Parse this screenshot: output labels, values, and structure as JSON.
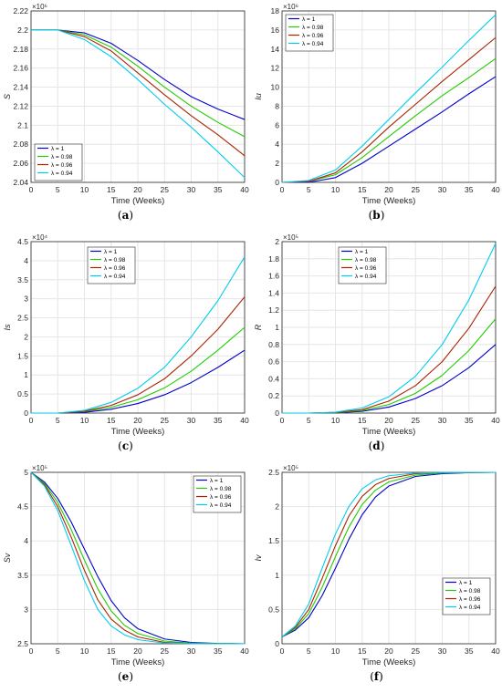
{
  "chart_data": [
    {
      "type": "line",
      "panel": "(a)",
      "ylabel": "S",
      "xlabel": "Time (Weeks)",
      "xlim": [
        0,
        40
      ],
      "ylim": [
        2.04,
        2.22
      ],
      "xticks": [
        0,
        5,
        10,
        15,
        20,
        25,
        30,
        35,
        40
      ],
      "yticks": [
        2.04,
        2.06,
        2.08,
        2.1,
        2.12,
        2.14,
        2.16,
        2.18,
        2.2,
        2.22
      ],
      "exponent": "×10⁶",
      "legend": "bottom-left",
      "x": [
        0,
        5,
        10,
        15,
        20,
        25,
        30,
        35,
        40
      ],
      "series": [
        {
          "name": "λ = 1",
          "color": "#0000cc",
          "values": [
            2.2,
            2.2,
            2.197,
            2.186,
            2.168,
            2.148,
            2.13,
            2.117,
            2.106
          ]
        },
        {
          "name": "λ = 0.98",
          "color": "#22cc00",
          "values": [
            2.2,
            2.2,
            2.195,
            2.182,
            2.162,
            2.14,
            2.12,
            2.103,
            2.088
          ]
        },
        {
          "name": "λ = 0.96",
          "color": "#aa2200",
          "values": [
            2.2,
            2.2,
            2.193,
            2.178,
            2.155,
            2.132,
            2.11,
            2.09,
            2.068
          ]
        },
        {
          "name": "λ = 0.94",
          "color": "#00ccee",
          "values": [
            2.2,
            2.2,
            2.19,
            2.172,
            2.148,
            2.122,
            2.098,
            2.072,
            2.045
          ]
        }
      ]
    },
    {
      "type": "line",
      "panel": "(b)",
      "ylabel": "Iu",
      "xlabel": "Time (Weeks)",
      "xlim": [
        0,
        40
      ],
      "ylim": [
        0,
        18
      ],
      "xticks": [
        0,
        5,
        10,
        15,
        20,
        25,
        30,
        35,
        40
      ],
      "yticks": [
        0,
        2,
        4,
        6,
        8,
        10,
        12,
        14,
        16,
        18
      ],
      "exponent": "×10⁶",
      "legend": "top-left",
      "x": [
        0,
        5,
        10,
        15,
        20,
        25,
        30,
        35,
        40
      ],
      "series": [
        {
          "name": "λ = 1",
          "color": "#0000cc",
          "values": [
            0,
            0,
            0.5,
            2,
            3.8,
            5.6,
            7.4,
            9.3,
            11.1
          ]
        },
        {
          "name": "λ = 0.98",
          "color": "#22cc00",
          "values": [
            0,
            0.1,
            0.8,
            2.6,
            4.8,
            7,
            9.1,
            11,
            13
          ]
        },
        {
          "name": "λ = 0.96",
          "color": "#aa2200",
          "values": [
            0,
            0.1,
            1,
            3.2,
            5.8,
            8.2,
            10.6,
            12.9,
            15.2
          ]
        },
        {
          "name": "λ = 0.94",
          "color": "#00ccee",
          "values": [
            0,
            0.2,
            1.3,
            3.8,
            6.6,
            9.4,
            12.1,
            14.9,
            17.6
          ]
        }
      ]
    },
    {
      "type": "line",
      "panel": "(c)",
      "ylabel": "Is",
      "xlabel": "Time (Weeks)",
      "xlim": [
        0,
        40
      ],
      "ylim": [
        0,
        4.5
      ],
      "xticks": [
        0,
        5,
        10,
        15,
        20,
        25,
        30,
        35,
        40
      ],
      "yticks": [
        0,
        0.5,
        1,
        1.5,
        2,
        2.5,
        3,
        3.5,
        4,
        4.5
      ],
      "exponent": "×10⁴",
      "legend": "top-center",
      "x": [
        0,
        5,
        10,
        15,
        20,
        25,
        30,
        35,
        40
      ],
      "series": [
        {
          "name": "λ = 1",
          "color": "#0000cc",
          "values": [
            0,
            0,
            0.02,
            0.1,
            0.25,
            0.48,
            0.8,
            1.2,
            1.65
          ]
        },
        {
          "name": "λ = 0.98",
          "color": "#22cc00",
          "values": [
            0,
            0,
            0.04,
            0.15,
            0.35,
            0.66,
            1.1,
            1.65,
            2.25
          ]
        },
        {
          "name": "λ = 0.96",
          "color": "#aa2200",
          "values": [
            0,
            0,
            0.05,
            0.2,
            0.48,
            0.9,
            1.5,
            2.2,
            3.05
          ]
        },
        {
          "name": "λ = 0.94",
          "color": "#00ccee",
          "values": [
            0,
            0,
            0.07,
            0.28,
            0.65,
            1.2,
            2,
            2.95,
            4.1
          ]
        }
      ]
    },
    {
      "type": "line",
      "panel": "(d)",
      "ylabel": "R",
      "xlabel": "Time (Weeks)",
      "xlim": [
        0,
        40
      ],
      "ylim": [
        0,
        2
      ],
      "xticks": [
        0,
        5,
        10,
        15,
        20,
        25,
        30,
        35,
        40
      ],
      "yticks": [
        0,
        0.2,
        0.4,
        0.6,
        0.8,
        1,
        1.2,
        1.4,
        1.6,
        1.8,
        2
      ],
      "exponent": "×10⁵",
      "legend": "top-center",
      "x": [
        0,
        5,
        10,
        15,
        20,
        25,
        30,
        35,
        40
      ],
      "series": [
        {
          "name": "λ = 1",
          "color": "#0000cc",
          "values": [
            0,
            0,
            0.003,
            0.02,
            0.07,
            0.17,
            0.32,
            0.53,
            0.8
          ]
        },
        {
          "name": "λ = 0.98",
          "color": "#22cc00",
          "values": [
            0,
            0,
            0.005,
            0.03,
            0.1,
            0.23,
            0.44,
            0.73,
            1.1
          ]
        },
        {
          "name": "λ = 0.96",
          "color": "#aa2200",
          "values": [
            0,
            0,
            0.007,
            0.04,
            0.14,
            0.32,
            0.6,
            0.99,
            1.48
          ]
        },
        {
          "name": "λ = 0.94",
          "color": "#00ccee",
          "values": [
            0,
            0,
            0.01,
            0.06,
            0.19,
            0.43,
            0.8,
            1.32,
            1.98
          ]
        }
      ]
    },
    {
      "type": "line",
      "panel": "(e)",
      "ylabel": "Sv",
      "xlabel": "Time (Weeks)",
      "xlim": [
        0,
        40
      ],
      "ylim": [
        2.5,
        5
      ],
      "xticks": [
        0,
        5,
        10,
        15,
        20,
        25,
        30,
        35,
        40
      ],
      "yticks": [
        2.5,
        3,
        3.5,
        4,
        4.5,
        5
      ],
      "exponent": "×10⁵",
      "legend": "top-right",
      "x": [
        0,
        2.5,
        5,
        7.5,
        10,
        12.5,
        15,
        17.5,
        20,
        25,
        30,
        35,
        40
      ],
      "series": [
        {
          "name": "λ = 1",
          "color": "#0000cc",
          "values": [
            5,
            4.86,
            4.62,
            4.28,
            3.88,
            3.48,
            3.13,
            2.88,
            2.72,
            2.57,
            2.52,
            2.505,
            2.5
          ]
        },
        {
          "name": "λ = 0.98",
          "color": "#22cc00",
          "values": [
            5,
            4.84,
            4.56,
            4.17,
            3.72,
            3.3,
            2.98,
            2.77,
            2.65,
            2.54,
            2.51,
            2.502,
            2.5
          ]
        },
        {
          "name": "λ = 0.96",
          "color": "#aa2200",
          "values": [
            5,
            4.82,
            4.5,
            4.06,
            3.57,
            3.14,
            2.86,
            2.7,
            2.6,
            2.52,
            2.505,
            2.501,
            2.5
          ]
        },
        {
          "name": "λ = 0.94",
          "color": "#00ccee",
          "values": [
            5,
            4.8,
            4.44,
            3.94,
            3.42,
            3.0,
            2.76,
            2.63,
            2.56,
            2.51,
            2.502,
            2.5,
            2.5
          ]
        }
      ]
    },
    {
      "type": "line",
      "panel": "(f)",
      "ylabel": "Iv",
      "xlabel": "Time (Weeks)",
      "xlim": [
        0,
        40
      ],
      "ylim": [
        0,
        2.5
      ],
      "xticks": [
        0,
        5,
        10,
        15,
        20,
        25,
        30,
        35,
        40
      ],
      "yticks": [
        0,
        0.5,
        1,
        1.5,
        2,
        2.5
      ],
      "exponent": "×10⁵",
      "legend": "bottom-right",
      "x": [
        0,
        2.5,
        5,
        7.5,
        10,
        12.5,
        15,
        17.5,
        20,
        25,
        30,
        35,
        40
      ],
      "series": [
        {
          "name": "λ = 1",
          "color": "#0000cc",
          "values": [
            0.1,
            0.2,
            0.38,
            0.7,
            1.1,
            1.52,
            1.88,
            2.14,
            2.3,
            2.44,
            2.48,
            2.495,
            2.5
          ]
        },
        {
          "name": "λ = 0.98",
          "color": "#22cc00",
          "values": [
            0.1,
            0.22,
            0.44,
            0.82,
            1.27,
            1.7,
            2.03,
            2.24,
            2.36,
            2.46,
            2.49,
            2.497,
            2.5
          ]
        },
        {
          "name": "λ = 0.96",
          "color": "#aa2200",
          "values": [
            0.1,
            0.24,
            0.5,
            0.95,
            1.43,
            1.86,
            2.15,
            2.32,
            2.41,
            2.48,
            2.495,
            2.498,
            2.5
          ]
        },
        {
          "name": "λ = 0.94",
          "color": "#00ccee",
          "values": [
            0.1,
            0.26,
            0.58,
            1.1,
            1.6,
            2.0,
            2.26,
            2.39,
            2.45,
            2.49,
            2.497,
            2.5,
            2.5
          ]
        }
      ]
    }
  ]
}
